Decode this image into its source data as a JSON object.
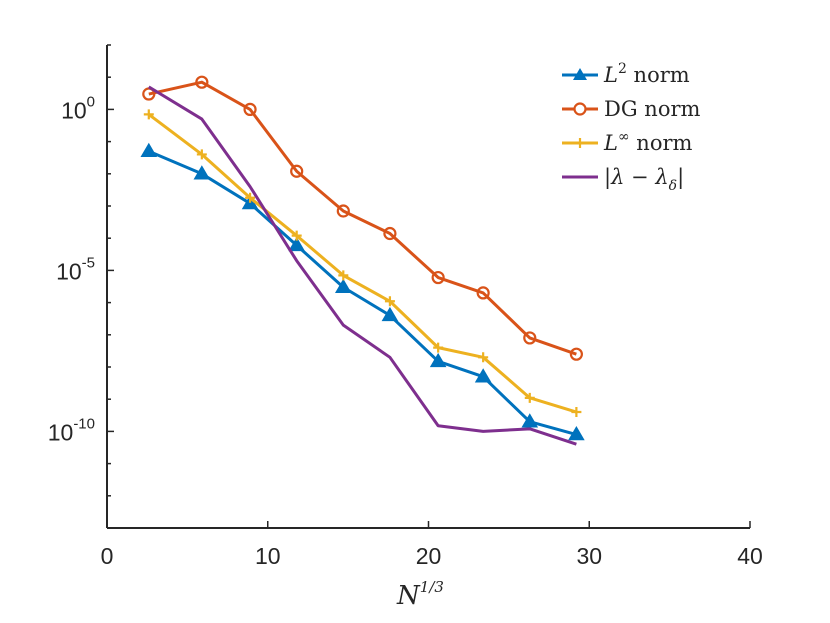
{
  "chart_data": {
    "type": "line",
    "xlabel": {
      "base": "N",
      "superscript": "1/3"
    },
    "ylabel": "",
    "xlim": [
      0,
      40
    ],
    "ylim_log10": [
      -13,
      2
    ],
    "y_scale": "log",
    "grid": false,
    "legend_position": "top-right",
    "x_ticks": [
      {
        "value": 0,
        "label": "0"
      },
      {
        "value": 10,
        "label": "10"
      },
      {
        "value": 20,
        "label": "20"
      },
      {
        "value": 30,
        "label": "30"
      },
      {
        "value": 40,
        "label": "40"
      }
    ],
    "y_ticks": [
      {
        "exp": 0,
        "base": "10",
        "sup": "0"
      },
      {
        "exp": -5,
        "base": "10",
        "sup": "-5"
      },
      {
        "exp": -10,
        "base": "10",
        "sup": "-10"
      }
    ],
    "series": [
      {
        "name": "L² norm",
        "legend": {
          "prefix": "L",
          "sup": "2",
          "suffix": " norm"
        },
        "color": "#0072BD",
        "marker": "triangle",
        "x": [
          2.6,
          5.9,
          8.9,
          11.8,
          14.7,
          17.6,
          20.6,
          23.4,
          26.3,
          29.2
        ],
        "y": [
          0.05,
          0.01,
          0.0012,
          6e-05,
          3e-06,
          4e-07,
          1.5e-08,
          5e-09,
          2e-10,
          8e-11
        ]
      },
      {
        "name": "DG norm",
        "legend": {
          "prefix": "",
          "sup": "",
          "suffix": "DG norm"
        },
        "color": "#D95319",
        "marker": "circle",
        "x": [
          2.6,
          5.9,
          8.9,
          11.8,
          14.7,
          17.6,
          20.6,
          23.4,
          26.3,
          29.2
        ],
        "y": [
          3.0,
          7.0,
          1.0,
          0.012,
          0.0007,
          0.00014,
          6e-06,
          2e-06,
          8e-08,
          2.5e-08
        ]
      },
      {
        "name": "L∞ norm",
        "legend": {
          "prefix": "L",
          "sup": "∞",
          "suffix": " norm"
        },
        "color": "#EDB120",
        "marker": "plus",
        "x": [
          2.6,
          5.9,
          8.9,
          11.8,
          14.7,
          17.6,
          20.6,
          23.4,
          26.3,
          29.2
        ],
        "y": [
          0.7,
          0.04,
          0.0018,
          0.00012,
          7e-06,
          1.1e-06,
          4e-08,
          2e-08,
          1.1e-09,
          4e-10
        ]
      },
      {
        "name": "|λ − λδ|",
        "legend": {
          "prefix": "|λ − λ",
          "sub": "δ",
          "suffix": "|"
        },
        "color": "#7E2F8E",
        "marker": "none",
        "x": [
          2.6,
          5.9,
          8.9,
          11.8,
          14.7,
          17.6,
          20.6,
          23.4,
          26.3,
          29.2
        ],
        "y": [
          5.0,
          0.5,
          0.004,
          2e-05,
          2e-07,
          2e-08,
          1.5e-10,
          1e-10,
          1.2e-10,
          4e-11
        ]
      }
    ]
  }
}
